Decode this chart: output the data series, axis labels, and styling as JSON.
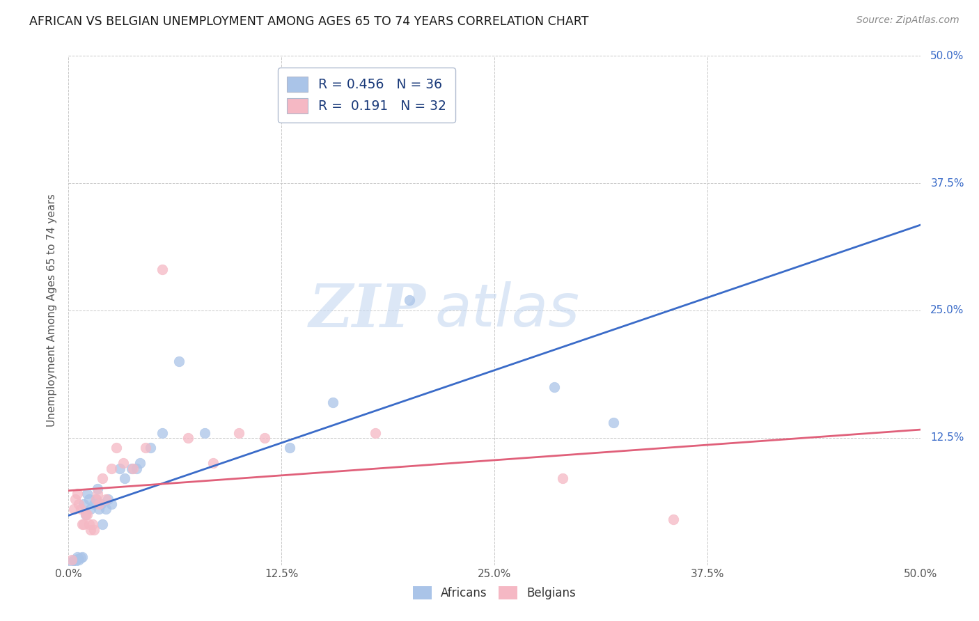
{
  "title": "AFRICAN VS BELGIAN UNEMPLOYMENT AMONG AGES 65 TO 74 YEARS CORRELATION CHART",
  "source": "Source: ZipAtlas.com",
  "ylabel": "Unemployment Among Ages 65 to 74 years",
  "xlim": [
    0.0,
    0.5
  ],
  "ylim": [
    0.0,
    0.5
  ],
  "xtick_vals": [
    0.0,
    0.125,
    0.25,
    0.375,
    0.5
  ],
  "ytick_vals": [
    0.0,
    0.125,
    0.25,
    0.375,
    0.5
  ],
  "right_ytick_vals": [
    0.5,
    0.375,
    0.25,
    0.125
  ],
  "right_ytick_labels": [
    "50.0%",
    "37.5%",
    "25.0%",
    "12.5%"
  ],
  "legend_africans_R": "R = 0.456",
  "legend_africans_N": "N = 36",
  "legend_belgians_R": "R =  0.191",
  "legend_belgians_N": "N = 32",
  "africans_color": "#aac4e8",
  "belgians_color": "#f5b8c4",
  "africans_line_color": "#3a6bc8",
  "belgians_line_color": "#e0607a",
  "watermark_zip": "ZIP",
  "watermark_atlas": "atlas",
  "grid_color": "#c8c8c8",
  "background_color": "#ffffff",
  "africans_x": [
    0.002,
    0.003,
    0.004,
    0.005,
    0.005,
    0.006,
    0.007,
    0.008,
    0.009,
    0.01,
    0.011,
    0.012,
    0.013,
    0.015,
    0.016,
    0.017,
    0.018,
    0.019,
    0.02,
    0.022,
    0.023,
    0.025,
    0.03,
    0.033,
    0.037,
    0.04,
    0.042,
    0.048,
    0.055,
    0.065,
    0.08,
    0.13,
    0.155,
    0.2,
    0.285,
    0.32
  ],
  "africans_y": [
    0.003,
    0.005,
    0.004,
    0.006,
    0.008,
    0.005,
    0.007,
    0.008,
    0.06,
    0.05,
    0.07,
    0.065,
    0.055,
    0.06,
    0.065,
    0.075,
    0.055,
    0.06,
    0.04,
    0.055,
    0.065,
    0.06,
    0.095,
    0.085,
    0.095,
    0.095,
    0.1,
    0.115,
    0.13,
    0.2,
    0.13,
    0.115,
    0.16,
    0.26,
    0.175,
    0.14
  ],
  "belgians_x": [
    0.002,
    0.003,
    0.004,
    0.005,
    0.006,
    0.007,
    0.008,
    0.009,
    0.01,
    0.011,
    0.012,
    0.013,
    0.014,
    0.015,
    0.016,
    0.017,
    0.018,
    0.02,
    0.022,
    0.025,
    0.028,
    0.032,
    0.038,
    0.045,
    0.055,
    0.07,
    0.085,
    0.1,
    0.115,
    0.18,
    0.29,
    0.355
  ],
  "belgians_y": [
    0.005,
    0.055,
    0.065,
    0.07,
    0.06,
    0.055,
    0.04,
    0.04,
    0.05,
    0.05,
    0.04,
    0.035,
    0.04,
    0.035,
    0.065,
    0.07,
    0.06,
    0.085,
    0.065,
    0.095,
    0.115,
    0.1,
    0.095,
    0.115,
    0.29,
    0.125,
    0.1,
    0.13,
    0.125,
    0.13,
    0.085,
    0.045
  ]
}
